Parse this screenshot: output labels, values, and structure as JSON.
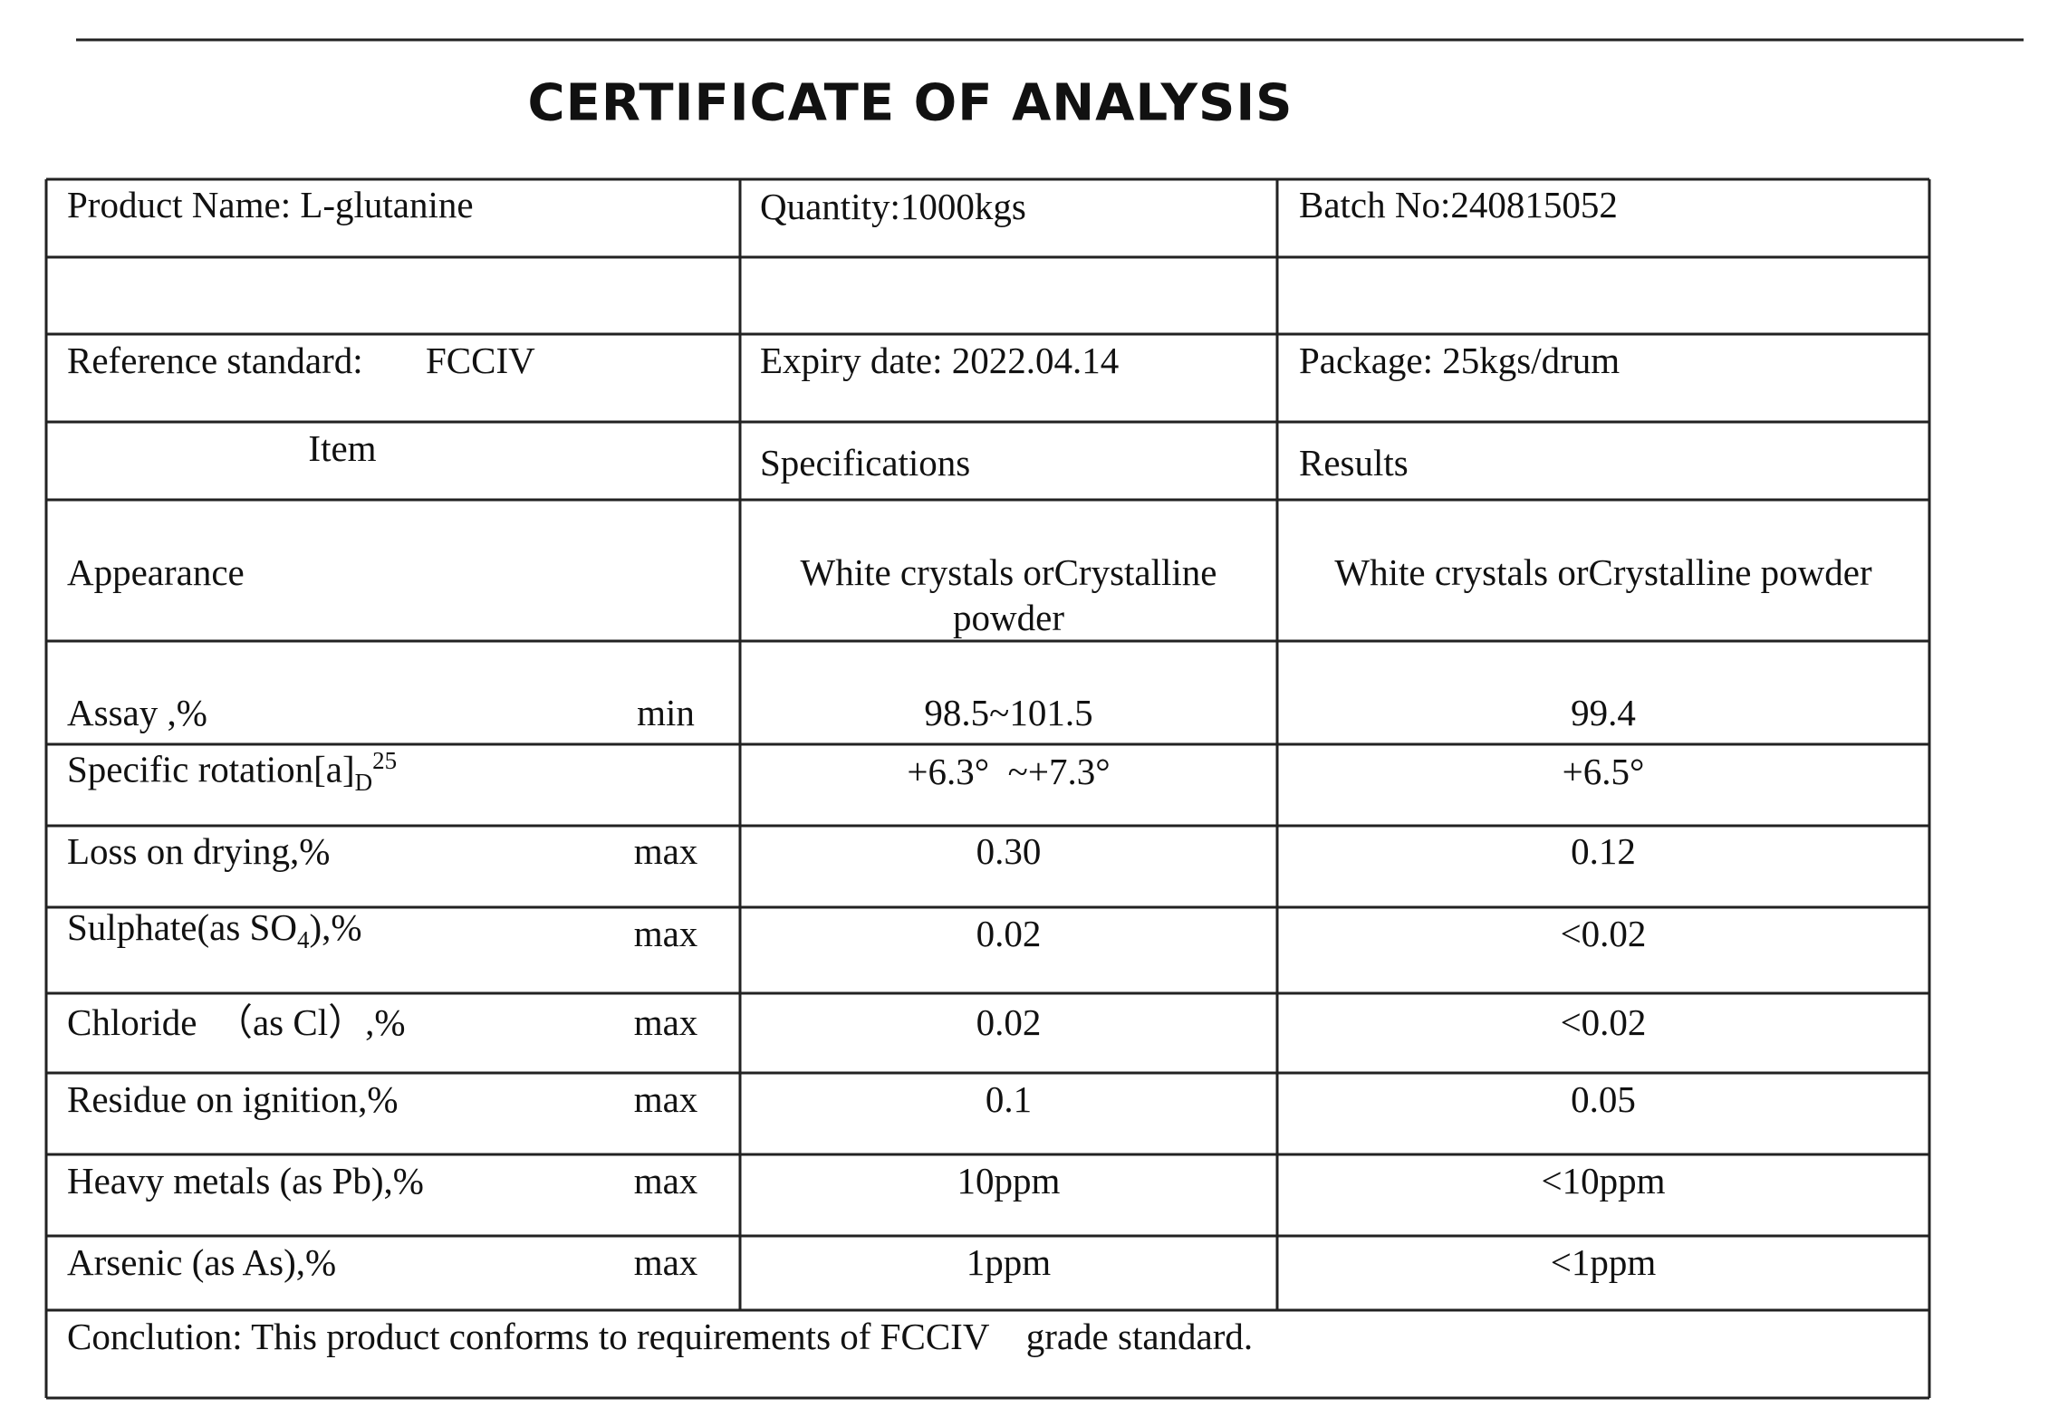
{
  "title": "CERTIFICATE OF ANALYSIS",
  "info": {
    "product_name": "Product Name: L-glutanine",
    "quantity": "Quantity:1000kgs",
    "batch_no": "Batch No:240815052",
    "reference_standard": "Reference standard:",
    "reference_value": "FCCIV",
    "expiry_date": "Expiry date: 2022.04.14",
    "package": "Package: 25kgs/drum"
  },
  "columns": [
    "Item",
    "Specifications",
    "Results"
  ],
  "rows": [
    {
      "item": "Appearance",
      "spec": "White crystals orCrystalline powder",
      "result": "White crystals orCrystalline powder"
    },
    {
      "item": "Assay ,%",
      "limit": "min",
      "spec": "98.5~101.5",
      "result": "99.4"
    },
    {
      "item": "Specific rotation[a]",
      "item_sub": "D",
      "item_sup": "25",
      "spec": "+6.3°  ~+7.3°",
      "result": "+6.5°"
    },
    {
      "item": "Loss on drying,%",
      "limit": "max",
      "spec": "0.30",
      "result": "0.12"
    },
    {
      "item": "Sulphate(as SO",
      "item_sub": "4",
      "item_after": "),%",
      "limit": "max",
      "spec": "0.02",
      "result": "<0.02"
    },
    {
      "item": "Chloride  （as Cl）,%",
      "limit": "max",
      "spec": "0.02",
      "result": "<0.02"
    },
    {
      "item": "Residue on ignition,%",
      "limit": "max",
      "spec": "0.1",
      "result": "0.05"
    },
    {
      "item": "Heavy metals (as Pb),%",
      "limit": "max",
      "spec": "10ppm",
      "result": "<10ppm"
    },
    {
      "item": "Arsenic (as As),%",
      "limit": "max",
      "spec": "1ppm",
      "result": "<1ppm"
    }
  ],
  "conclusion": "Conclution: This product conforms to requirements of FCCIV    grade standard."
}
